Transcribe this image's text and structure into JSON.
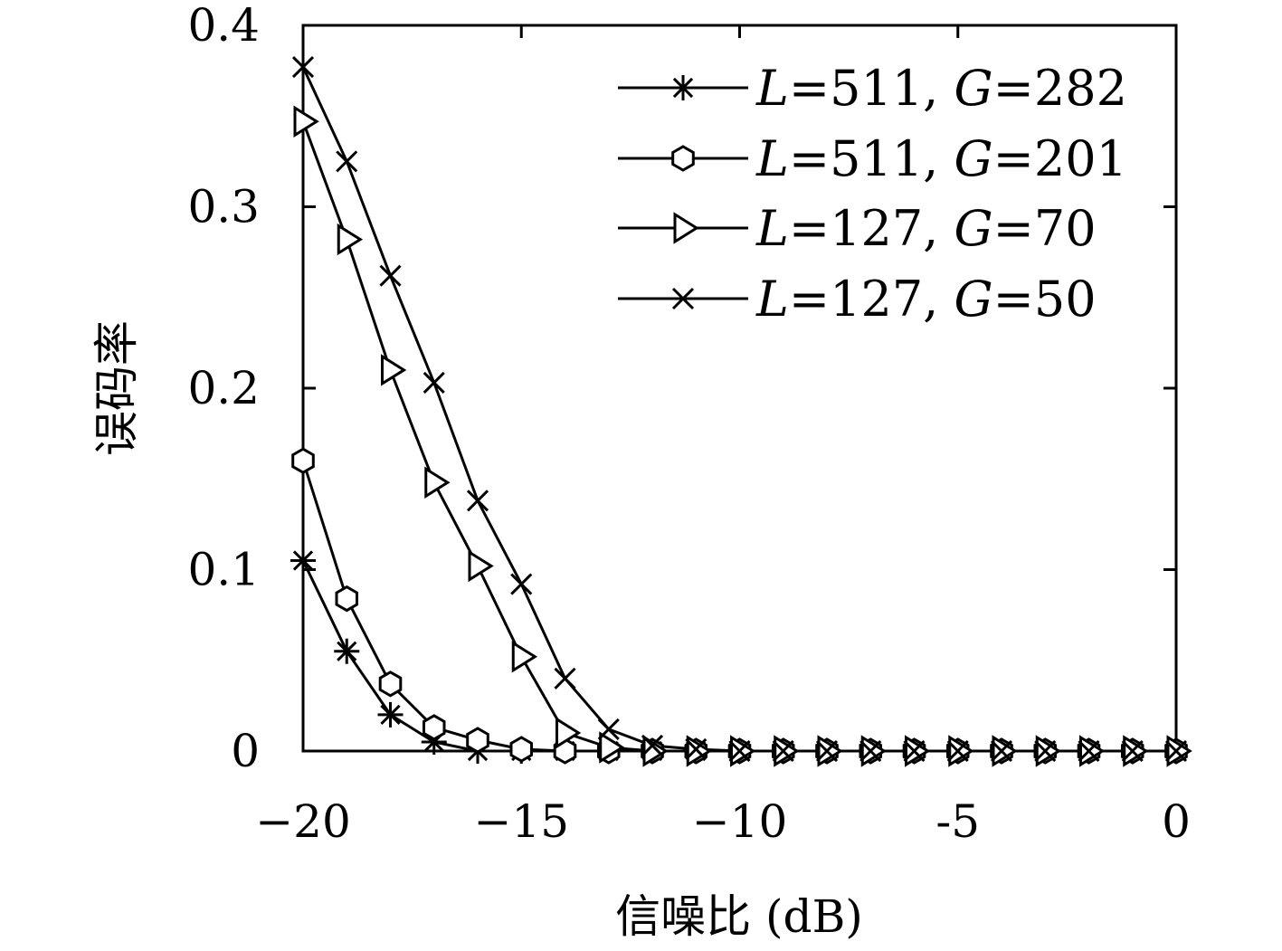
{
  "chart_data": {
    "type": "line",
    "xlabel": "信噪比 (dB)",
    "ylabel": "误码率",
    "xlim": [
      -20,
      0
    ],
    "ylim": [
      0,
      0.4
    ],
    "xticks": [
      -20,
      -15,
      -10,
      -5,
      0
    ],
    "xtick_labels": [
      "−20",
      "−15",
      "−10",
      "-5",
      "0"
    ],
    "yticks": [
      0,
      0.1,
      0.2,
      0.3,
      0.4
    ],
    "ytick_labels": [
      "0",
      "0.1",
      "0.2",
      "0.3",
      "0.4"
    ],
    "grid": false,
    "legend_position": "top-right",
    "x": [
      -20,
      -19,
      -18,
      -17,
      -16,
      -15,
      -14,
      -13,
      -12,
      -11,
      -10,
      -9,
      -8,
      -7,
      -6,
      -5,
      -4,
      -3,
      -2,
      -1,
      0
    ],
    "series": [
      {
        "name": "L=511, G=282",
        "marker": "asterisk",
        "values": [
          0.105,
          0.055,
          0.02,
          0.005,
          0,
          0,
          0,
          0,
          0,
          0,
          0,
          0,
          0,
          0,
          0,
          0,
          0,
          0,
          0,
          0,
          0
        ]
      },
      {
        "name": "L=511, G=201",
        "marker": "hexagon",
        "values": [
          0.16,
          0.084,
          0.037,
          0.013,
          0.006,
          0.001,
          0,
          0,
          0,
          0,
          0,
          0,
          0,
          0,
          0,
          0,
          0,
          0,
          0,
          0,
          0
        ]
      },
      {
        "name": "L=127, G=70",
        "marker": "triangle-right",
        "values": [
          0.347,
          0.282,
          0.21,
          0.148,
          0.102,
          0.052,
          0.01,
          0.002,
          0,
          0,
          0,
          0,
          0,
          0,
          0,
          0,
          0,
          0,
          0,
          0,
          0
        ]
      },
      {
        "name": "L=127, G=50",
        "marker": "x",
        "values": [
          0.377,
          0.325,
          0.262,
          0.203,
          0.138,
          0.092,
          0.04,
          0.012,
          0.003,
          0.001,
          0,
          0,
          0,
          0,
          0,
          0,
          0,
          0,
          0,
          0,
          0
        ]
      }
    ],
    "legend": [
      {
        "L": "511",
        "G": "282"
      },
      {
        "L": "511",
        "G": "201"
      },
      {
        "L": "127",
        "G": "70"
      },
      {
        "L": "127",
        "G": "50"
      }
    ]
  }
}
